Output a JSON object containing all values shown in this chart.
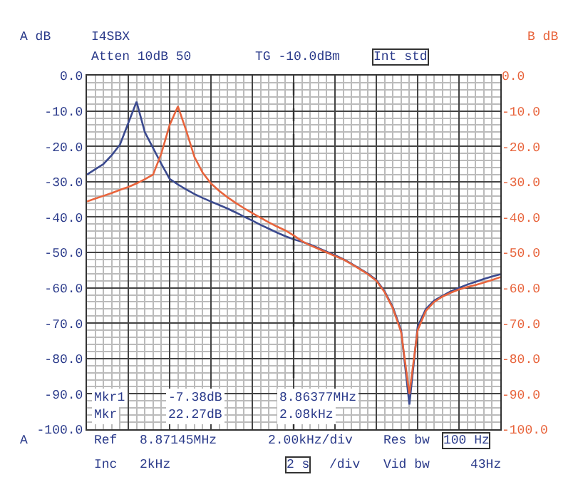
{
  "chart_data": {
    "type": "line",
    "ylabel": "A dB",
    "y2label": "B dB",
    "categories": [
      null,
      null,
      null,
      null,
      null,
      null,
      null,
      null,
      null,
      null,
      null,
      null,
      null,
      null,
      null,
      null,
      null,
      null,
      null,
      null,
      null,
      null,
      null,
      null,
      null,
      null,
      null,
      null,
      null,
      null,
      null,
      null,
      null,
      null,
      null,
      null,
      null,
      null,
      null,
      null,
      null,
      null,
      null,
      null,
      null,
      null,
      null,
      null,
      null,
      null,
      null
    ],
    "ylim": [
      -100,
      0
    ],
    "yticks": [
      {
        "value": 0,
        "label": "0.0"
      },
      {
        "value": -10,
        "label": "-10.0"
      },
      {
        "value": -20,
        "label": "-20.0"
      },
      {
        "value": -30,
        "label": "-30.0"
      },
      {
        "value": -40,
        "label": "-40.0"
      },
      {
        "value": -50,
        "label": "-50.0"
      },
      {
        "value": -60,
        "label": "-60.0"
      },
      {
        "value": -70,
        "label": "-70.0"
      },
      {
        "value": -80,
        "label": "-80.0"
      },
      {
        "value": -90,
        "label": "-90.0"
      },
      {
        "value": -100,
        "label": "-100.0"
      }
    ],
    "y2lim": [
      -100,
      0
    ],
    "y2ticks": [
      {
        "value": 0,
        "label": "0.0"
      },
      {
        "value": -10,
        "label": "-10.0"
      },
      {
        "value": -20,
        "label": "-20.0"
      },
      {
        "value": -30,
        "label": "-30.0"
      },
      {
        "value": -40,
        "label": "-40.0"
      },
      {
        "value": -50,
        "label": "-50.0"
      },
      {
        "value": -60,
        "label": "-60.0"
      },
      {
        "value": -70,
        "label": "-70.0"
      },
      {
        "value": -80,
        "label": "-80.0"
      },
      {
        "value": -90,
        "label": "-90.0"
      },
      {
        "value": -100,
        "label": "-100.0"
      }
    ],
    "tick_labels": "y",
    "grid": true,
    "marker": "none",
    "line_style": "solid",
    "series": [
      {
        "color": "#3b4a8f",
        "values": [
          -28,
          -26.5,
          -25,
          -22.5,
          -19.5,
          -13.4,
          -7.4,
          -16,
          -20.5,
          -25,
          -29.2,
          -30.8,
          -32.2,
          -33.5,
          -34.6,
          -35.6,
          -36.6,
          -37.6,
          -38.7,
          -39.9,
          -41,
          -42.2,
          -43.3,
          -44.4,
          -45.4,
          -46.3,
          -47,
          -47.8,
          -48.8,
          -49.8,
          -50.8,
          -51.9,
          -53.2,
          -54.6,
          -56,
          -57.8,
          -61,
          -65.5,
          -72,
          -93,
          -71,
          -66,
          -63.6,
          -62.3,
          -61,
          -60,
          -59.1,
          -58.3,
          -57.5,
          -56.8,
          -56.2
        ]
      },
      {
        "color": "#e8643c",
        "axis": "y2",
        "values": [
          -35.6,
          -34.8,
          -34,
          -33.2,
          -32.3,
          -31.5,
          -30.5,
          -29.3,
          -28,
          -22,
          -14,
          -8.7,
          -15.5,
          -23,
          -27.5,
          -30.5,
          -32.6,
          -34.4,
          -36,
          -37.5,
          -38.9,
          -40.2,
          -41.5,
          -42.7,
          -43.8,
          -45.2,
          -46.8,
          -48,
          -49,
          -50,
          -51,
          -52,
          -53.3,
          -54.7,
          -56.2,
          -58,
          -61.2,
          -65.8,
          -72.5,
          -90,
          -72,
          -66.5,
          -64,
          -62.5,
          -61.4,
          -60.5,
          -59.8,
          -59.2,
          -58.5,
          -57.8,
          -57
        ]
      }
    ],
    "ref_lines": [
      {
        "axis": "x",
        "color": "#333333",
        "line_style": "dashed"
      }
    ],
    "annotations": [
      "I4SBX",
      "Atten 10dB 50",
      "TG -10.0dBm",
      "Int std",
      "Mkr1",
      "-7.38dB",
      "8.86377MHz",
      "Mkr",
      "22.27dB",
      "2.08kHz",
      "A",
      "Ref",
      "8.87145MHz",
      "2.00kHz/div",
      "Res bw",
      "100 Hz",
      "Inc",
      "2kHz",
      "2 s",
      "/div",
      "Vid bw",
      "43Hz"
    ]
  }
}
